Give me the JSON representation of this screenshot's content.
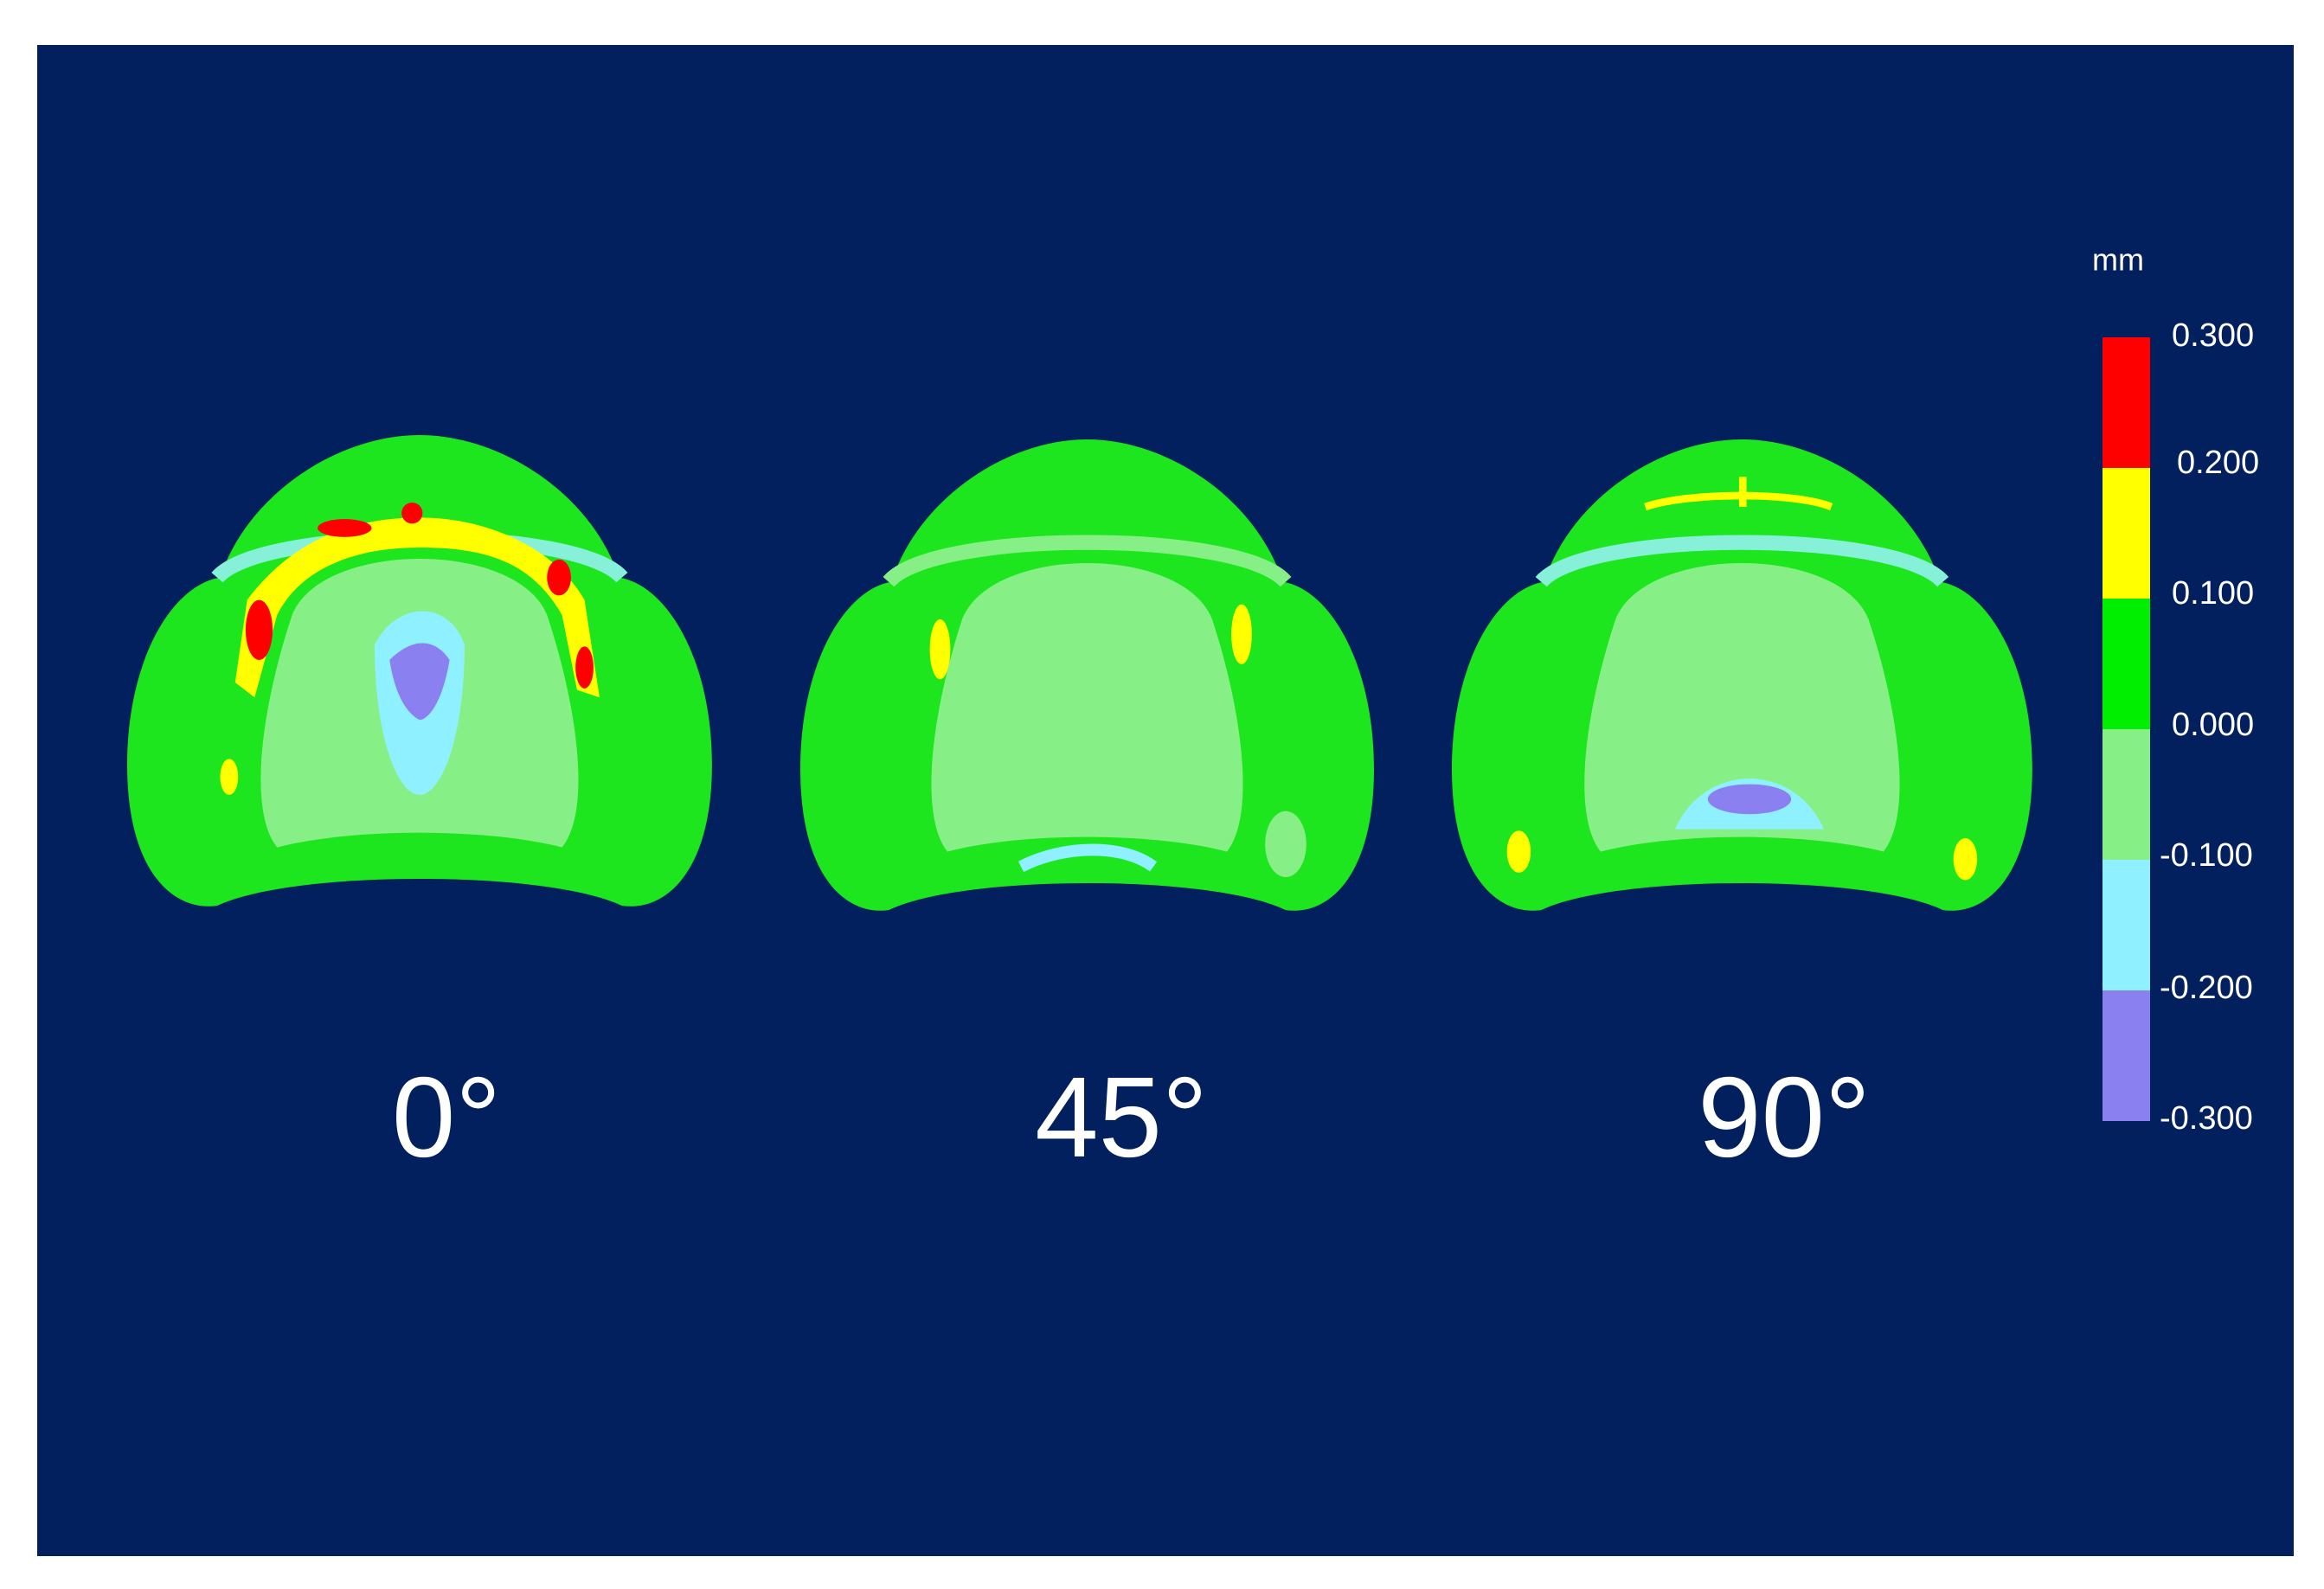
{
  "color_scale": {
    "unit": "mm",
    "labels": [
      "0.300",
      "0.200",
      "0.100",
      "0.000",
      "-0.100",
      "-0.200",
      "-0.300"
    ]
  },
  "panels": [
    {
      "label": "0°"
    },
    {
      "label": "45°"
    },
    {
      "label": "90°"
    }
  ]
}
